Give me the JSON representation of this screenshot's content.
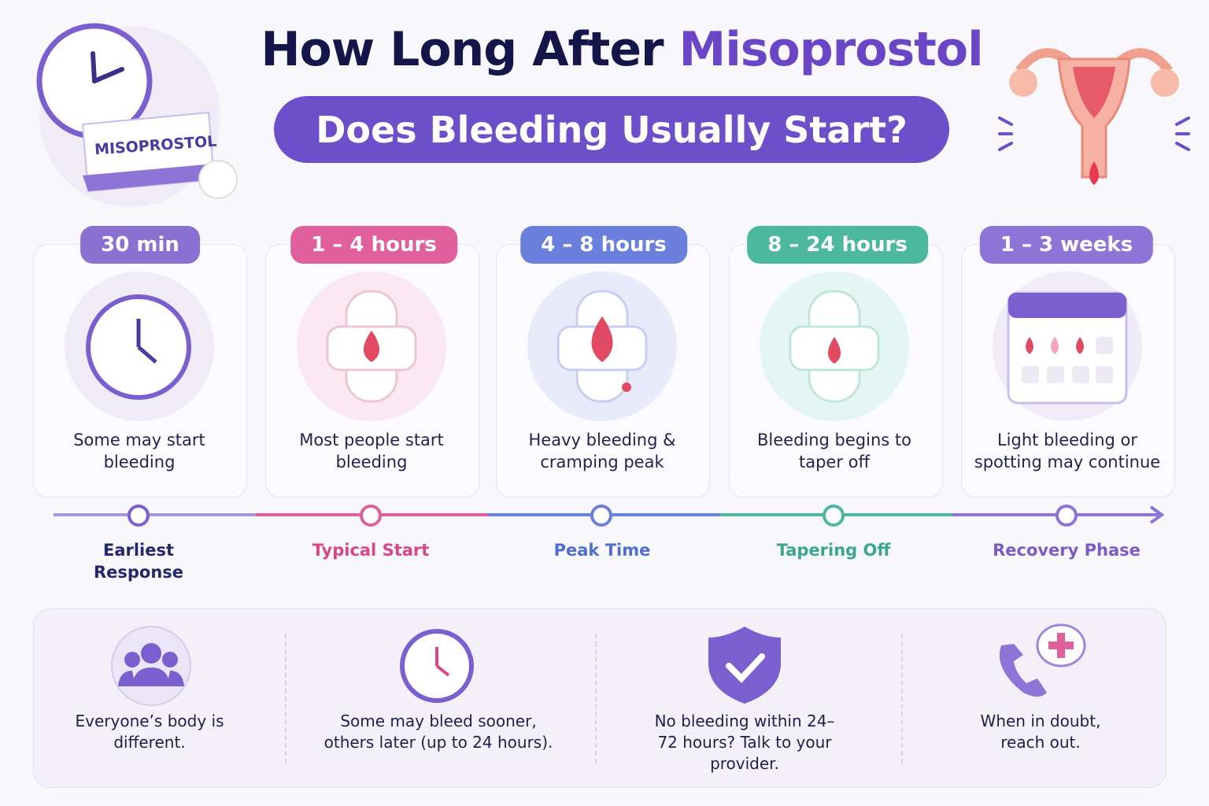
{
  "header": {
    "title_lead": "How Long After",
    "title_highlight": "Misoprostol",
    "subtitle": "Does Bleeding Usually Start?",
    "box_label": "MISOPROSTOL"
  },
  "stages": [
    {
      "time": "30 min",
      "description": "Some may start bleeding",
      "phase": "Earliest Response"
    },
    {
      "time": "1 – 4 hours",
      "description": "Most people start bleeding",
      "phase": "Typical Start"
    },
    {
      "time": "4 – 8 hours",
      "description": "Heavy bleeding & cramping peak",
      "phase": "Peak Time"
    },
    {
      "time": "8 – 24 hours",
      "description": "Bleeding begins to taper off",
      "phase": "Tapering Off"
    },
    {
      "time": "1 – 3 weeks",
      "description": "Light bleeding or spotting may continue",
      "phase": "Recovery Phase"
    }
  ],
  "notes": [
    "Everyone’s body is different.",
    "Some may bleed sooner, others later (up to 24 hours).",
    "No bleeding within 24–72 hours? Talk to your provider.",
    "When in doubt, reach out."
  ]
}
